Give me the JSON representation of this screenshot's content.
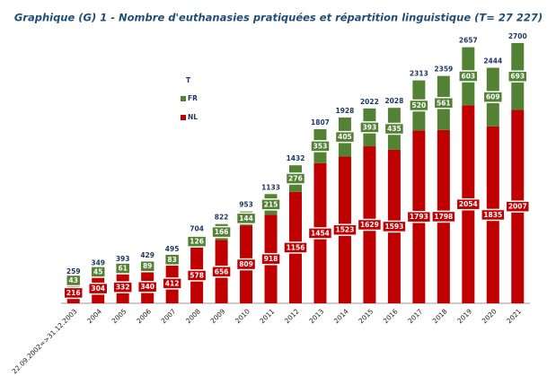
{
  "chart_data": {
    "type": "stacked-bar",
    "title": "Graphique (G) 1 - Nombre d'euthanasies pratiquées et répartition linguistique (T= 27 227)",
    "categories": [
      "22.09.2002=>31.12.2003",
      "2004",
      "2005",
      "2006",
      "2007",
      "2008",
      "2009",
      "2010",
      "2011",
      "2012",
      "2013",
      "2014",
      "2015",
      "2016",
      "2017",
      "2018",
      "2019",
      "2020",
      "2021"
    ],
    "series": [
      {
        "name": "NL",
        "color": "#c00000",
        "values": [
          216,
          304,
          332,
          340,
          412,
          578,
          656,
          809,
          918,
          1156,
          1454,
          1523,
          1629,
          1593,
          1793,
          1798,
          2054,
          1835,
          2007
        ]
      },
      {
        "name": "FR",
        "color": "#548235",
        "values": [
          43,
          45,
          61,
          89,
          83,
          126,
          166,
          144,
          215,
          276,
          353,
          405,
          393,
          435,
          520,
          561,
          603,
          609,
          693
        ]
      }
    ],
    "totals": {
      "name": "T",
      "values": [
        259,
        349,
        393,
        429,
        495,
        704,
        822,
        953,
        1133,
        1432,
        1807,
        1928,
        2022,
        2028,
        2313,
        2359,
        2657,
        2444,
        2700
      ]
    }
  }
}
